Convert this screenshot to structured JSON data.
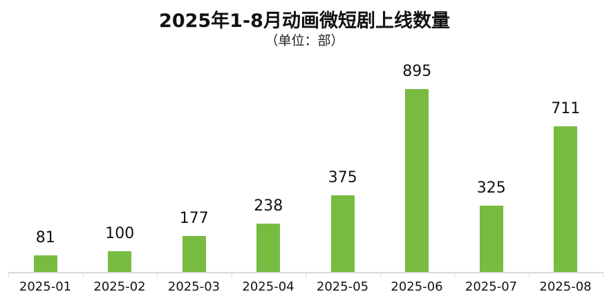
{
  "header": {
    "title": "2025年1-8月动画微短剧上线数量",
    "subtitle": "（单位：部）"
  },
  "colors": {
    "bar": "#77bb41",
    "axis": "#d9d9d9"
  },
  "chart_data": {
    "type": "bar",
    "title": "2025年1-8月动画微短剧上线数量",
    "subtitle": "（单位：部）",
    "xlabel": "",
    "ylabel": "",
    "categories": [
      "2025-01",
      "2025-02",
      "2025-03",
      "2025-04",
      "2025-05",
      "2025-06",
      "2025-07",
      "2025-08"
    ],
    "values": [
      81,
      100,
      177,
      238,
      375,
      895,
      325,
      711
    ],
    "data_labels": true,
    "grid": false,
    "legend": null,
    "ylim": [
      0,
      950
    ]
  }
}
